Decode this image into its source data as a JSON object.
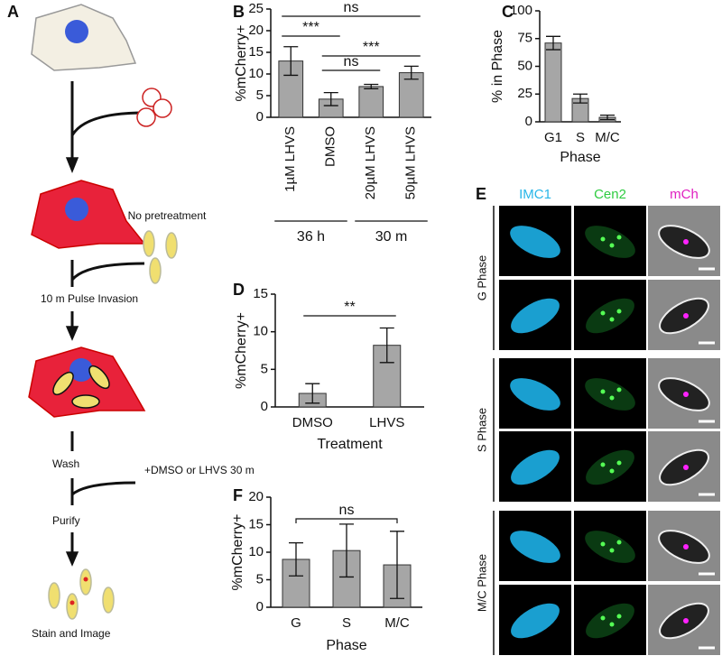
{
  "chart_data": [
    {
      "type": "bar",
      "panel": "B",
      "ylabel": "%mCherry+",
      "categories": [
        "1µM LHVS",
        "DMSO",
        "20µM LHVS",
        "50µM LHVS"
      ],
      "values": [
        13,
        4.2,
        7.1,
        10.3
      ],
      "errors": [
        3.3,
        1.5,
        0.5,
        1.5
      ],
      "color": "#a6a6a6",
      "ylim": [
        0,
        25
      ],
      "yticks": [
        0,
        5,
        10,
        15,
        20,
        25
      ],
      "annotations": [
        "ns",
        "***",
        "ns",
        "***"
      ],
      "groups": [
        "36 h",
        "30 m"
      ]
    },
    {
      "type": "bar",
      "panel": "C",
      "ylabel": "% in Phase",
      "xlabel": "Phase",
      "categories": [
        "G1",
        "S",
        "M/C"
      ],
      "values": [
        71,
        21,
        4
      ],
      "errors": [
        6,
        4,
        2
      ],
      "color": "#a6a6a6",
      "ylim": [
        0,
        100
      ],
      "yticks": [
        0,
        25,
        50,
        75,
        100
      ]
    },
    {
      "type": "bar",
      "panel": "D",
      "ylabel": "%mCherry+",
      "xlabel": "Treatment",
      "categories": [
        "DMSO",
        "LHVS"
      ],
      "values": [
        1.8,
        8.2
      ],
      "errors": [
        1.3,
        2.3
      ],
      "color": "#a6a6a6",
      "ylim": [
        0,
        15
      ],
      "yticks": [
        0,
        5,
        10,
        15
      ],
      "annotations": [
        "**"
      ]
    },
    {
      "type": "bar",
      "panel": "F",
      "ylabel": "%mCherry+",
      "xlabel": "Phase",
      "categories": [
        "G",
        "S",
        "M/C"
      ],
      "values": [
        8.7,
        10.3,
        7.7
      ],
      "errors": [
        3,
        4.8,
        6.1
      ],
      "color": "#a6a6a6",
      "ylim": [
        0,
        20
      ],
      "yticks": [
        0,
        5,
        10,
        15,
        20
      ],
      "annotations": [
        "ns"
      ]
    }
  ],
  "schematic": {
    "panel": "A",
    "steps": [
      "No pretreatment",
      "10 m Pulse Invasion",
      "Wash",
      "+DMSO or LHVS 30 m",
      "Purify",
      "Stain and Image"
    ]
  },
  "micrographs": {
    "panel": "E",
    "columns": [
      "IMC1",
      "Cen2",
      "mCh"
    ],
    "rows": [
      "G Phase",
      "S Phase",
      "M/C Phase"
    ]
  }
}
